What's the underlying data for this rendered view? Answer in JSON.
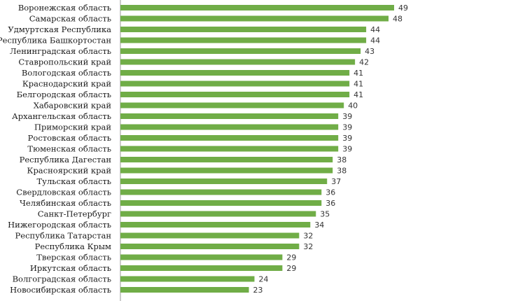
{
  "chart_data": {
    "type": "bar",
    "orientation": "horizontal",
    "title": "",
    "xlabel": "",
    "ylabel": "",
    "categories": [
      "Воронежская область",
      "Самарская область",
      "Удмуртская Республика",
      "Республика Башкортостан",
      "Ленинградская область",
      "Ставропольский край",
      "Вологодская область",
      "Краснодарский край",
      "Белгородская область",
      "Хабаровский край",
      "Архангельская область",
      "Приморский край",
      "Ростовская область",
      "Тюменская область",
      "Республика Дагестан",
      "Красноярский край",
      "Тульская область",
      "Свердловская область",
      "Челябинская область",
      "Санкт-Петербург",
      "Нижегородская область",
      "Республика Татарстан",
      "Республика Крым",
      "Тверская область",
      "Иркутская область",
      "Волгоградская область",
      "Новосибирская область"
    ],
    "values": [
      49,
      48,
      44,
      44,
      43,
      42,
      41,
      41,
      41,
      40,
      39,
      39,
      39,
      39,
      38,
      38,
      37,
      36,
      36,
      35,
      34,
      32,
      32,
      29,
      29,
      24,
      23
    ],
    "xlim": [
      0,
      50
    ],
    "grid": false,
    "legend": "none",
    "bar_color": "#70ad47"
  }
}
